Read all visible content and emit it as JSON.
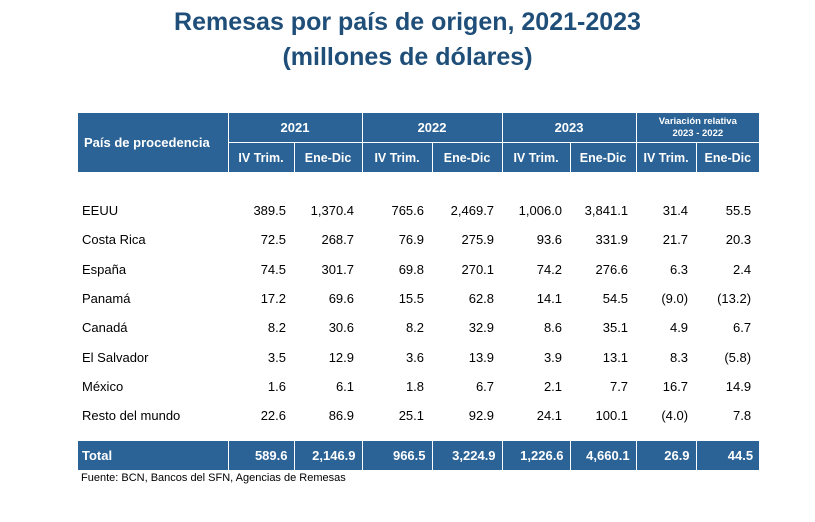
{
  "title_line1": "Remesas por país de origen, 2021-2023",
  "title_line2": "(millones de dólares)",
  "table": {
    "country_header": "País de procedencia",
    "years": [
      "2021",
      "2022",
      "2023"
    ],
    "variation_header_line1": "Variación relativa",
    "variation_header_line2": "2023 - 2022",
    "sub_headers": [
      "IV Trim.",
      "Ene-Dic",
      "IV Trim.",
      "Ene-Dic",
      "IV Trim.",
      "Ene-Dic",
      "IV Trim.",
      "Ene-Dic"
    ],
    "rows": [
      {
        "country": "EEUU",
        "values": [
          "389.5",
          "1,370.4",
          "765.6",
          "2,469.7",
          "1,006.0",
          "3,841.1",
          "31.4",
          "55.5"
        ]
      },
      {
        "country": "Costa Rica",
        "values": [
          "72.5",
          "268.7",
          "76.9",
          "275.9",
          "93.6",
          "331.9",
          "21.7",
          "20.3"
        ]
      },
      {
        "country": "España",
        "values": [
          "74.5",
          "301.7",
          "69.8",
          "270.1",
          "74.2",
          "276.6",
          "6.3",
          "2.4"
        ]
      },
      {
        "country": "Panamá",
        "values": [
          "17.2",
          "69.6",
          "15.5",
          "62.8",
          "14.1",
          "54.5",
          "(9.0)",
          "(13.2)"
        ]
      },
      {
        "country": "Canadá",
        "values": [
          "8.2",
          "30.6",
          "8.2",
          "32.9",
          "8.6",
          "35.1",
          "4.9",
          "6.7"
        ]
      },
      {
        "country": "El Salvador",
        "values": [
          "3.5",
          "12.9",
          "3.6",
          "13.9",
          "3.9",
          "13.1",
          "8.3",
          "(5.8)"
        ]
      },
      {
        "country": "México",
        "values": [
          "1.6",
          "6.1",
          "1.8",
          "6.7",
          "2.1",
          "7.7",
          "16.7",
          "14.9"
        ]
      },
      {
        "country": "Resto del mundo",
        "values": [
          "22.6",
          "86.9",
          "25.1",
          "92.9",
          "24.1",
          "100.1",
          "(4.0)",
          "7.8"
        ]
      }
    ],
    "total": {
      "label": "Total",
      "values": [
        "589.6",
        "2,146.9",
        "966.5",
        "3,224.9",
        "1,226.6",
        "4,660.1",
        "26.9",
        "44.5"
      ]
    }
  },
  "source": "Fuente: BCN, Bancos del SFN, Agencias de Remesas",
  "colors": {
    "title": "#1f4e79",
    "header_bg": "#2b6396",
    "header_text": "#ffffff"
  }
}
